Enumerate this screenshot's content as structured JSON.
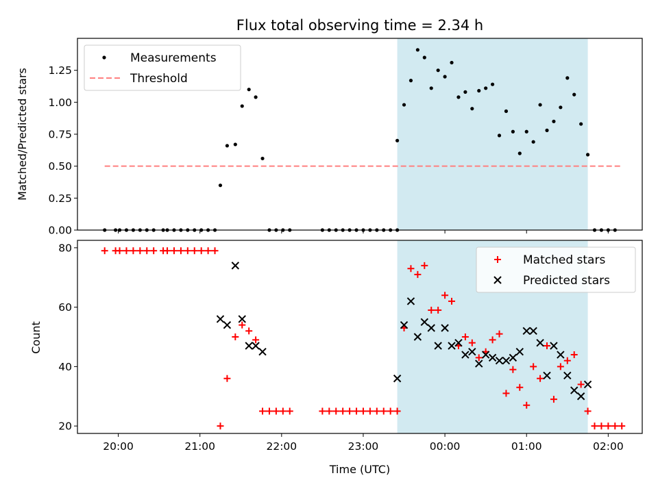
{
  "chart_data": {
    "type": "scatter",
    "title": "Flux total observing time = 2.34 h",
    "xlabel": "Time (UTC)",
    "x_ticks": [
      "20:00",
      "21:00",
      "22:00",
      "23:00",
      "00:00",
      "01:00",
      "02:00"
    ],
    "observing_window": {
      "start": "23:25",
      "end": "01:45",
      "color": "#add8e6"
    },
    "panels": [
      {
        "ylabel": "Matched/Predicted stars",
        "ylim": [
          0,
          1.5
        ],
        "y_ticks": [
          "0.00",
          "0.25",
          "0.50",
          "0.75",
          "1.00",
          "1.25"
        ],
        "legend": {
          "placement": "top-left"
        },
        "threshold": {
          "name": "Threshold",
          "value": 0.5,
          "color": "#ff7f7f",
          "x_start": "19:50",
          "x_end": "02:10"
        },
        "series": [
          {
            "name": "Measurements",
            "marker": "dot",
            "color": "#000000",
            "points": [
              [
                "19:50",
                0
              ],
              [
                "19:58",
                0
              ],
              [
                "20:01",
                0
              ],
              [
                "20:06",
                0
              ],
              [
                "20:11",
                0
              ],
              [
                "20:16",
                0
              ],
              [
                "20:21",
                0
              ],
              [
                "20:26",
                0
              ],
              [
                "20:33",
                0
              ],
              [
                "20:36",
                0
              ],
              [
                "20:41",
                0
              ],
              [
                "20:46",
                0
              ],
              [
                "20:51",
                0
              ],
              [
                "20:56",
                0
              ],
              [
                "21:01",
                0
              ],
              [
                "21:06",
                0
              ],
              [
                "21:11",
                0
              ],
              [
                "21:15",
                0.35
              ],
              [
                "21:20",
                0.66
              ],
              [
                "21:26",
                0.67
              ],
              [
                "21:31",
                0.97
              ],
              [
                "21:36",
                1.1
              ],
              [
                "21:41",
                1.04
              ],
              [
                "21:46",
                0.56
              ],
              [
                "21:51",
                0
              ],
              [
                "21:56",
                0
              ],
              [
                "22:01",
                0
              ],
              [
                "22:06",
                0
              ],
              [
                "22:30",
                0
              ],
              [
                "22:35",
                0
              ],
              [
                "22:40",
                0
              ],
              [
                "22:45",
                0
              ],
              [
                "22:50",
                0
              ],
              [
                "22:55",
                0
              ],
              [
                "23:00",
                0
              ],
              [
                "23:05",
                0
              ],
              [
                "23:10",
                0
              ],
              [
                "23:15",
                0
              ],
              [
                "23:20",
                0
              ],
              [
                "23:25",
                0
              ],
              [
                "23:25",
                0.7
              ],
              [
                "23:30",
                0.98
              ],
              [
                "23:35",
                1.17
              ],
              [
                "23:40",
                1.41
              ],
              [
                "23:45",
                1.35
              ],
              [
                "23:50",
                1.11
              ],
              [
                "23:55",
                1.25
              ],
              [
                "00:00",
                1.2
              ],
              [
                "00:05",
                1.31
              ],
              [
                "00:10",
                1.04
              ],
              [
                "00:15",
                1.08
              ],
              [
                "00:20",
                0.95
              ],
              [
                "00:25",
                1.09
              ],
              [
                "00:30",
                1.11
              ],
              [
                "00:35",
                1.14
              ],
              [
                "00:40",
                0.74
              ],
              [
                "00:45",
                0.93
              ],
              [
                "00:50",
                0.77
              ],
              [
                "00:55",
                0.6
              ],
              [
                "01:00",
                0.77
              ],
              [
                "01:05",
                0.69
              ],
              [
                "01:10",
                0.98
              ],
              [
                "01:15",
                0.78
              ],
              [
                "01:20",
                0.85
              ],
              [
                "01:25",
                0.96
              ],
              [
                "01:30",
                1.19
              ],
              [
                "01:35",
                1.06
              ],
              [
                "01:40",
                0.83
              ],
              [
                "01:45",
                0.59
              ],
              [
                "01:50",
                0
              ],
              [
                "01:55",
                0
              ],
              [
                "02:00",
                0
              ],
              [
                "02:05",
                0
              ]
            ]
          }
        ]
      },
      {
        "ylabel": "Count",
        "ylim": [
          17.5,
          82.5
        ],
        "y_ticks": [
          "20",
          "40",
          "60",
          "80"
        ],
        "legend": {
          "placement": "top-right"
        },
        "series": [
          {
            "name": "Matched stars",
            "marker": "plus",
            "color": "#ff0000",
            "points": [
              [
                "19:50",
                79
              ],
              [
                "19:58",
                79
              ],
              [
                "20:01",
                79
              ],
              [
                "20:06",
                79
              ],
              [
                "20:11",
                79
              ],
              [
                "20:16",
                79
              ],
              [
                "20:21",
                79
              ],
              [
                "20:26",
                79
              ],
              [
                "20:33",
                79
              ],
              [
                "20:36",
                79
              ],
              [
                "20:41",
                79
              ],
              [
                "20:46",
                79
              ],
              [
                "20:51",
                79
              ],
              [
                "20:56",
                79
              ],
              [
                "21:01",
                79
              ],
              [
                "21:06",
                79
              ],
              [
                "21:11",
                79
              ],
              [
                "21:15",
                20
              ],
              [
                "21:20",
                36
              ],
              [
                "21:26",
                50
              ],
              [
                "21:31",
                54
              ],
              [
                "21:36",
                52
              ],
              [
                "21:41",
                49
              ],
              [
                "21:46",
                25
              ],
              [
                "21:51",
                25
              ],
              [
                "21:56",
                25
              ],
              [
                "22:01",
                25
              ],
              [
                "22:06",
                25
              ],
              [
                "22:30",
                25
              ],
              [
                "22:35",
                25
              ],
              [
                "22:40",
                25
              ],
              [
                "22:45",
                25
              ],
              [
                "22:50",
                25
              ],
              [
                "22:55",
                25
              ],
              [
                "23:00",
                25
              ],
              [
                "23:05",
                25
              ],
              [
                "23:10",
                25
              ],
              [
                "23:15",
                25
              ],
              [
                "23:20",
                25
              ],
              [
                "23:25",
                25
              ],
              [
                "23:30",
                53
              ],
              [
                "23:35",
                73
              ],
              [
                "23:40",
                71
              ],
              [
                "23:45",
                74
              ],
              [
                "23:50",
                59
              ],
              [
                "23:55",
                59
              ],
              [
                "00:00",
                64
              ],
              [
                "00:05",
                62
              ],
              [
                "00:10",
                47
              ],
              [
                "00:15",
                50
              ],
              [
                "00:20",
                48
              ],
              [
                "00:25",
                43
              ],
              [
                "00:30",
                45
              ],
              [
                "00:35",
                49
              ],
              [
                "00:40",
                51
              ],
              [
                "00:45",
                31
              ],
              [
                "00:50",
                39
              ],
              [
                "00:55",
                33
              ],
              [
                "01:00",
                27
              ],
              [
                "01:05",
                40
              ],
              [
                "01:10",
                36
              ],
              [
                "01:15",
                47
              ],
              [
                "01:20",
                29
              ],
              [
                "01:25",
                40
              ],
              [
                "01:30",
                42
              ],
              [
                "01:35",
                44
              ],
              [
                "01:40",
                34
              ],
              [
                "01:45",
                25
              ],
              [
                "01:50",
                20
              ],
              [
                "01:55",
                20
              ],
              [
                "02:00",
                20
              ],
              [
                "02:05",
                20
              ],
              [
                "02:10",
                20
              ]
            ]
          },
          {
            "name": "Predicted stars",
            "marker": "x",
            "color": "#000000",
            "points": [
              [
                "21:15",
                56
              ],
              [
                "21:20",
                54
              ],
              [
                "21:26",
                74
              ],
              [
                "21:31",
                56
              ],
              [
                "21:36",
                47
              ],
              [
                "21:41",
                47
              ],
              [
                "21:46",
                45
              ],
              [
                "23:25",
                36
              ],
              [
                "23:30",
                54
              ],
              [
                "23:35",
                62
              ],
              [
                "23:40",
                50
              ],
              [
                "23:45",
                55
              ],
              [
                "23:50",
                53
              ],
              [
                "23:55",
                47
              ],
              [
                "00:00",
                53
              ],
              [
                "00:05",
                47
              ],
              [
                "00:10",
                48
              ],
              [
                "00:15",
                44
              ],
              [
                "00:20",
                45
              ],
              [
                "00:25",
                41
              ],
              [
                "00:30",
                44
              ],
              [
                "00:35",
                43
              ],
              [
                "00:40",
                42
              ],
              [
                "00:45",
                42
              ],
              [
                "00:50",
                43
              ],
              [
                "00:55",
                45
              ],
              [
                "01:00",
                52
              ],
              [
                "01:05",
                52
              ],
              [
                "01:10",
                48
              ],
              [
                "01:15",
                37
              ],
              [
                "01:20",
                47
              ],
              [
                "01:25",
                44
              ],
              [
                "01:30",
                37
              ],
              [
                "01:35",
                32
              ],
              [
                "01:40",
                30
              ],
              [
                "01:45",
                34
              ]
            ]
          }
        ]
      }
    ]
  }
}
